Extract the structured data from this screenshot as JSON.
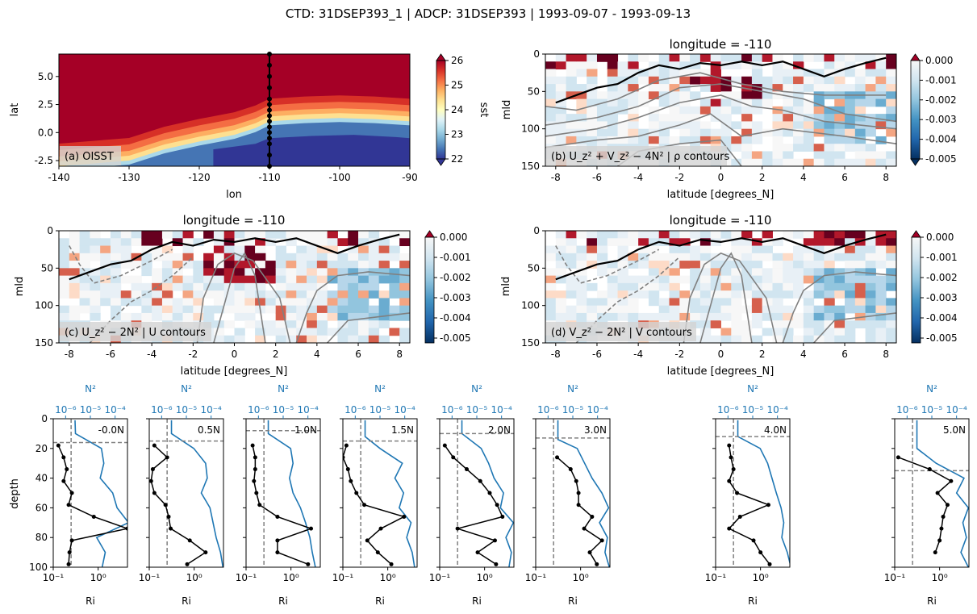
{
  "suptitle": "CTD: 31DSEP393_1 | ADCP: 31DSEP393 | 1993-09-07 - 1993-09-13",
  "colors": {
    "red": "#a50026",
    "blue": "#1f77b4",
    "contour": "#808080",
    "mld": "#000000",
    "ri_line": "#000000",
    "label_box": "#d3d3d3"
  },
  "chart_data": [
    {
      "id": "a",
      "type": "heatmap",
      "panel_label": "(a) OISST",
      "xlabel": "lon",
      "ylabel": "lat",
      "xlim": [
        -140,
        -90
      ],
      "ylim": [
        -3,
        7
      ],
      "xticks": [
        "-140",
        "-130",
        "-120",
        "-110",
        "-100",
        "-90"
      ],
      "yticks": [
        "-2.5",
        "0.0",
        "2.5",
        "5.0"
      ],
      "colorbar": {
        "label": "sst",
        "ticks": [
          "22",
          "23",
          "24",
          "25",
          "26"
        ],
        "range": [
          22,
          26
        ],
        "cmap": "RdYlBu_r"
      },
      "field": "sst",
      "cold_tongue": {
        "lon": [
          -140,
          -130,
          -125,
          -120,
          -115,
          -112,
          -110,
          -105,
          -100,
          -95,
          -90
        ],
        "north_edge_lat": [
          -3.0,
          -2.5,
          -1.5,
          -0.8,
          -0.2,
          0.4,
          1.0,
          1.2,
          1.3,
          1.2,
          1.0
        ],
        "core_min_lat": -1.8
      },
      "station_lon": -110,
      "station_lats": [
        -3,
        -2,
        -1,
        -0.5,
        0,
        0.5,
        1,
        1.5,
        2,
        2.5,
        3,
        4,
        5,
        6,
        7
      ]
    },
    {
      "id": "b",
      "type": "heatmap",
      "title": "longitude = -110",
      "panel_label": "(b) U_z² + V_z² − 4N² | ρ contours",
      "xlabel": "latitude [degrees_N]",
      "ylabel": "mld",
      "xlim": [
        -8.5,
        8.5
      ],
      "ylim": [
        150,
        0
      ],
      "xticks": [
        "-8",
        "-6",
        "-4",
        "-2",
        "0",
        "2",
        "4",
        "6",
        "8"
      ],
      "yticks": [
        "0",
        "50",
        "100",
        "150"
      ],
      "colorbar": {
        "ticks": [
          "0.000",
          "-0.001",
          "-0.002",
          "-0.003",
          "-0.004",
          "-0.005"
        ],
        "range": [
          -0.005,
          0.0
        ],
        "cmap": "RdBu_r",
        "extend": "both"
      },
      "mld": {
        "lat": [
          -8,
          -7,
          -6,
          -5,
          -4,
          -3,
          -2,
          -1,
          0,
          1,
          2,
          3,
          4,
          5,
          6,
          7,
          8
        ],
        "depth": [
          65,
          55,
          45,
          40,
          25,
          15,
          20,
          12,
          15,
          10,
          15,
          10,
          20,
          30,
          20,
          12,
          5
        ]
      },
      "contour_style": "solid"
    },
    {
      "id": "c",
      "type": "heatmap",
      "title": "longitude = -110",
      "panel_label": "(c) U_z² − 2N² | U contours",
      "xlabel": "latitude [degrees_N]",
      "ylabel": "mld",
      "xlim": [
        -8.5,
        8.5
      ],
      "ylim": [
        150,
        0
      ],
      "xticks": [
        "-8",
        "-6",
        "-4",
        "-2",
        "0",
        "2",
        "4",
        "6",
        "8"
      ],
      "yticks": [
        "0",
        "50",
        "100",
        "150"
      ],
      "colorbar": {
        "ticks": [
          "0.000",
          "-0.001",
          "-0.002",
          "-0.003",
          "-0.004",
          "-0.005"
        ],
        "range": [
          -0.005,
          0.0
        ],
        "cmap": "RdBu_r",
        "extend": "max"
      },
      "mld": {
        "lat": [
          -8,
          -7,
          -6,
          -5,
          -4,
          -3,
          -2,
          -1,
          0,
          1,
          2,
          3,
          4,
          5,
          6,
          7,
          8
        ],
        "depth": [
          65,
          55,
          45,
          40,
          25,
          15,
          20,
          12,
          15,
          10,
          15,
          10,
          20,
          30,
          20,
          12,
          5
        ]
      },
      "contour_style": "mixed"
    },
    {
      "id": "d",
      "type": "heatmap",
      "title": "longitude = -110",
      "panel_label": "(d) V_z² − 2N² | V contours",
      "xlabel": "latitude [degrees_N]",
      "ylabel": "mld",
      "xlim": [
        -8.5,
        8.5
      ],
      "ylim": [
        150,
        0
      ],
      "xticks": [
        "-8",
        "-6",
        "-4",
        "-2",
        "0",
        "2",
        "4",
        "6",
        "8"
      ],
      "yticks": [
        "0",
        "50",
        "100",
        "150"
      ],
      "colorbar": {
        "ticks": [
          "0.000",
          "-0.001",
          "-0.002",
          "-0.003",
          "-0.004",
          "-0.005"
        ],
        "range": [
          -0.005,
          0.0
        ],
        "cmap": "RdBu_r",
        "extend": "max"
      },
      "mld": {
        "lat": [
          -8,
          -7,
          -6,
          -5,
          -4,
          -3,
          -2,
          -1,
          0,
          1,
          2,
          3,
          4,
          5,
          6,
          7,
          8
        ],
        "depth": [
          65,
          55,
          45,
          40,
          25,
          15,
          20,
          12,
          15,
          10,
          15,
          10,
          20,
          30,
          20,
          12,
          5
        ]
      },
      "contour_style": "mixed"
    },
    {
      "id": "profiles",
      "type": "line",
      "xlabel": "Ri",
      "ylabel": "depth",
      "top_xlabel": "N²",
      "xlim_ri": [
        0.1,
        4.5
      ],
      "xticks_ri": [
        "10⁻¹",
        "10⁰"
      ],
      "xticks_n2": [
        "10⁻⁶",
        "10⁻⁵",
        "10⁻⁴"
      ],
      "ylim": [
        100,
        0
      ],
      "yticks": [
        "0",
        "20",
        "40",
        "60",
        "80",
        "100"
      ],
      "ri_crit": 0.25,
      "panels": [
        {
          "label": "-0.0N",
          "mld": 16,
          "ri": [
            [
              0.13,
              18
            ],
            [
              0.17,
              26
            ],
            [
              0.2,
              34
            ],
            [
              0.17,
              42
            ],
            [
              0.26,
              50
            ],
            [
              0.22,
              58
            ],
            [
              0.8,
              66
            ],
            [
              4.5,
              74
            ],
            [
              0.26,
              82
            ],
            [
              0.23,
              90
            ],
            [
              0.22,
              98
            ]
          ],
          "n2": [
            [
              2.4e-06,
              1
            ],
            [
              2.5e-06,
              10
            ],
            [
              2.8e-05,
              20
            ],
            [
              3.5e-05,
              30
            ],
            [
              2.5e-05,
              40
            ],
            [
              8e-05,
              50
            ],
            [
              0.00012,
              60
            ],
            [
              0.00035,
              70
            ],
            [
              1.8e-05,
              80
            ],
            [
              4e-05,
              90
            ],
            [
              3e-05,
              100
            ]
          ]
        },
        {
          "label": "0.5N",
          "mld": 15,
          "ri": [
            [
              0.13,
              18
            ],
            [
              0.25,
              26
            ],
            [
              0.12,
              34
            ],
            [
              0.11,
              42
            ],
            [
              0.13,
              50
            ],
            [
              0.23,
              58
            ],
            [
              0.27,
              66
            ],
            [
              0.3,
              74
            ],
            [
              0.8,
              82
            ],
            [
              1.8,
              90
            ],
            [
              0.7,
              98
            ]
          ],
          "n2": [
            [
              2.5e-06,
              1
            ],
            [
              2.5e-06,
              10
            ],
            [
              2e-05,
              20
            ],
            [
              6e-05,
              30
            ],
            [
              7e-05,
              40
            ],
            [
              4e-05,
              50
            ],
            [
              9e-05,
              60
            ],
            [
              0.00012,
              70
            ],
            [
              0.00016,
              80
            ],
            [
              0.00024,
              90
            ],
            [
              0.0003,
              100
            ]
          ]
        },
        {
          "label": "1.0N",
          "mld": 8,
          "ri": [
            [
              0.14,
              18
            ],
            [
              0.16,
              26
            ],
            [
              0.16,
              34
            ],
            [
              0.15,
              42
            ],
            [
              0.17,
              50
            ],
            [
              0.2,
              58
            ],
            [
              0.5,
              66
            ],
            [
              2.8,
              74
            ],
            [
              0.5,
              82
            ],
            [
              0.5,
              90
            ],
            [
              2.4,
              98
            ]
          ],
          "n2": [
            [
              2.5e-06,
              1
            ],
            [
              2.5e-06,
              10
            ],
            [
              2e-05,
              20
            ],
            [
              2.5e-05,
              30
            ],
            [
              1.8e-05,
              40
            ],
            [
              2.5e-05,
              50
            ],
            [
              5e-05,
              60
            ],
            [
              8e-05,
              70
            ],
            [
              0.00012,
              80
            ],
            [
              0.00015,
              90
            ],
            [
              0.0002,
              100
            ]
          ]
        },
        {
          "label": "1.5N",
          "mld": 15,
          "ri": [
            [
              0.12,
              18
            ],
            [
              0.1,
              26
            ],
            [
              0.13,
              34
            ],
            [
              0.15,
              42
            ],
            [
              0.2,
              50
            ],
            [
              0.3,
              58
            ],
            [
              2.3,
              66
            ],
            [
              0.7,
              74
            ],
            [
              0.35,
              82
            ],
            [
              0.6,
              90
            ],
            [
              1.2,
              98
            ]
          ],
          "n2": [
            [
              2.5e-06,
              1
            ],
            [
              2.5e-06,
              12
            ],
            [
              1e-05,
              20
            ],
            [
              8e-05,
              30
            ],
            [
              4e-05,
              40
            ],
            [
              9e-05,
              50
            ],
            [
              6e-05,
              60
            ],
            [
              0.00018,
              70
            ],
            [
              0.00012,
              80
            ],
            [
              0.0002,
              90
            ],
            [
              0.00025,
              100
            ]
          ]
        },
        {
          "label": "2.0N",
          "mld": 10,
          "ri": [
            [
              0.13,
              18
            ],
            [
              0.2,
              26
            ],
            [
              0.4,
              34
            ],
            [
              0.8,
              42
            ],
            [
              1.3,
              50
            ],
            [
              1.9,
              58
            ],
            [
              2.5,
              66
            ],
            [
              0.25,
              74
            ],
            [
              1.7,
              82
            ],
            [
              0.7,
              90
            ],
            [
              1.8,
              98
            ]
          ],
          "n2": [
            [
              2.5e-06,
              1
            ],
            [
              2.5e-06,
              10
            ],
            [
              1.5e-05,
              20
            ],
            [
              3e-05,
              30
            ],
            [
              5e-05,
              40
            ],
            [
              0.00012,
              50
            ],
            [
              9e-05,
              60
            ],
            [
              0.0003,
              70
            ],
            [
              0.00015,
              80
            ],
            [
              0.00025,
              90
            ],
            [
              0.0002,
              100
            ]
          ]
        },
        {
          "label": "3.0N",
          "mld": 13,
          "ri": [
            [
              0.3,
              26
            ],
            [
              0.6,
              34
            ],
            [
              0.8,
              42
            ],
            [
              0.9,
              50
            ],
            [
              0.9,
              58
            ],
            [
              1.8,
              66
            ],
            [
              1.2,
              74
            ],
            [
              3.0,
              82
            ],
            [
              1.6,
              90
            ],
            [
              2.3,
              98
            ]
          ],
          "n2": [
            [
              2.5e-06,
              1
            ],
            [
              2.5e-06,
              14
            ],
            [
              1.5e-05,
              20
            ],
            [
              3e-05,
              30
            ],
            [
              6e-05,
              40
            ],
            [
              0.00015,
              50
            ],
            [
              0.00028,
              60
            ],
            [
              0.00012,
              70
            ],
            [
              0.00025,
              80
            ],
            [
              0.0002,
              90
            ],
            [
              0.0003,
              100
            ]
          ]
        },
        {
          "label": "4.0N",
          "mld": 12,
          "ri": [
            [
              0.2,
              18
            ],
            [
              0.22,
              26
            ],
            [
              0.25,
              34
            ],
            [
              0.2,
              42
            ],
            [
              0.3,
              50
            ],
            [
              1.5,
              58
            ],
            [
              0.35,
              66
            ],
            [
              0.2,
              74
            ],
            [
              0.7,
              82
            ],
            [
              1.0,
              90
            ],
            [
              1.6,
              98
            ]
          ],
          "n2": [
            [
              2.5e-06,
              1
            ],
            [
              2.5e-06,
              12
            ],
            [
              2e-05,
              20
            ],
            [
              4e-05,
              30
            ],
            [
              6e-05,
              40
            ],
            [
              9e-05,
              50
            ],
            [
              0.00014,
              60
            ],
            [
              0.00018,
              70
            ],
            [
              0.00015,
              80
            ],
            [
              0.00025,
              90
            ],
            [
              0.00035,
              100
            ]
          ]
        },
        {
          "label": "5.0N",
          "mld": 35,
          "ri": [
            [
              0.12,
              26
            ],
            [
              0.6,
              34
            ],
            [
              1.8,
              42
            ],
            [
              0.9,
              50
            ],
            [
              1.5,
              58
            ],
            [
              1.2,
              66
            ],
            [
              1.1,
              74
            ],
            [
              1.0,
              82
            ],
            [
              0.8,
              90
            ]
          ],
          "n2": [
            [
              2.5e-06,
              1
            ],
            [
              2.5e-06,
              20
            ],
            [
              1.5e-05,
              30
            ],
            [
              0.0002,
              40
            ],
            [
              0.0001,
              50
            ],
            [
              0.0003,
              60
            ],
            [
              0.00018,
              70
            ],
            [
              0.00025,
              80
            ],
            [
              0.00015,
              90
            ],
            [
              0.0003,
              100
            ]
          ]
        }
      ]
    }
  ]
}
